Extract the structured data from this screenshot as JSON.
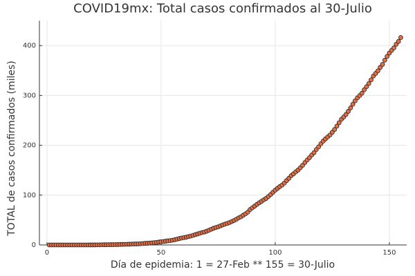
{
  "chart_data": {
    "type": "scatter",
    "title": "COVID19mx: Total casos confirmados al 30-Julio",
    "x_label": "Día de epidemia: 1 = 27-Feb ** 155 = 30-Julio",
    "y_label": "TOTAL de casos confirmados (miles)",
    "color": "#e26f46",
    "grid": true,
    "xlim": [
      -3.3,
      157.6
    ],
    "ylim": [
      0,
      450
    ],
    "xticks": [
      0,
      50,
      100,
      150
    ],
    "yticks": [
      0,
      100,
      200,
      300,
      400
    ],
    "x": [
      1,
      2,
      3,
      4,
      5,
      6,
      7,
      8,
      9,
      10,
      11,
      12,
      13,
      14,
      15,
      16,
      17,
      18,
      19,
      20,
      21,
      22,
      23,
      24,
      25,
      26,
      27,
      28,
      29,
      30,
      31,
      32,
      33,
      34,
      35,
      36,
      37,
      38,
      39,
      40,
      41,
      42,
      43,
      44,
      45,
      46,
      47,
      48,
      49,
      50,
      51,
      52,
      53,
      54,
      55,
      56,
      57,
      58,
      59,
      60,
      61,
      62,
      63,
      64,
      65,
      66,
      67,
      68,
      69,
      70,
      71,
      72,
      73,
      74,
      75,
      76,
      77,
      78,
      79,
      80,
      81,
      82,
      83,
      84,
      85,
      86,
      87,
      88,
      89,
      90,
      91,
      92,
      93,
      94,
      95,
      96,
      97,
      98,
      99,
      100,
      101,
      102,
      103,
      104,
      105,
      106,
      107,
      108,
      109,
      110,
      111,
      112,
      113,
      114,
      115,
      116,
      117,
      118,
      119,
      120,
      121,
      122,
      123,
      124,
      125,
      126,
      127,
      128,
      129,
      130,
      131,
      132,
      133,
      134,
      135,
      136,
      137,
      138,
      139,
      140,
      141,
      142,
      143,
      144,
      145,
      146,
      147,
      148,
      149,
      150,
      151,
      152,
      153,
      154,
      155
    ],
    "values": [
      0,
      0,
      0,
      0,
      0,
      0,
      0,
      0,
      0,
      0,
      0,
      0,
      0,
      0,
      0,
      0,
      0,
      0,
      0.1,
      0.1,
      0.1,
      0.2,
      0.2,
      0.3,
      0.4,
      0.4,
      0.5,
      0.6,
      0.6,
      0.7,
      0.8,
      1.0,
      1.1,
      1.2,
      1.4,
      1.5,
      1.7,
      1.9,
      2.0,
      2.1,
      2.4,
      2.8,
      3.2,
      3.4,
      3.8,
      4.2,
      4.7,
      5.0,
      5.8,
      6.3,
      6.9,
      7.5,
      8.3,
      8.8,
      9.5,
      10.5,
      11.6,
      12.9,
      13.8,
      14.7,
      15.5,
      16.8,
      17.8,
      19.2,
      20.7,
      22.1,
      23.5,
      24.9,
      26.0,
      27.6,
      29.6,
      31.5,
      33.5,
      35.0,
      36.3,
      38.3,
      40.2,
      41.9,
      43.3,
      45.0,
      47.1,
      49.2,
      51.6,
      54.3,
      56.6,
      59.6,
      62.5,
      65.9,
      71.1,
      74.6,
      78.0,
      81.4,
      84.6,
      87.5,
      90.7,
      93.4,
      97.3,
      101.2,
      105.7,
      110.0,
      113.6,
      117.1,
      120.1,
      124.3,
      129.2,
      133.9,
      139.2,
      142.7,
      146.8,
      150.3,
      154.9,
      159.8,
      165.5,
      170.5,
      175.2,
      180.5,
      185.1,
      191.4,
      196.8,
      203.0,
      208.4,
      212.8,
      216.9,
      220.7,
      226.1,
      231.8,
      238.5,
      245.3,
      252.2,
      256.8,
      261.8,
      268.0,
      275.0,
      282.3,
      289.2,
      295.3,
      299.8,
      304.4,
      311.5,
      317.6,
      324.0,
      331.3,
      338.9,
      344.2,
      349.4,
      356.3,
      362.3,
      370.7,
      378.3,
      385.0,
      390.5,
      395.5,
      402.7,
      408.4,
      416.2
    ]
  }
}
